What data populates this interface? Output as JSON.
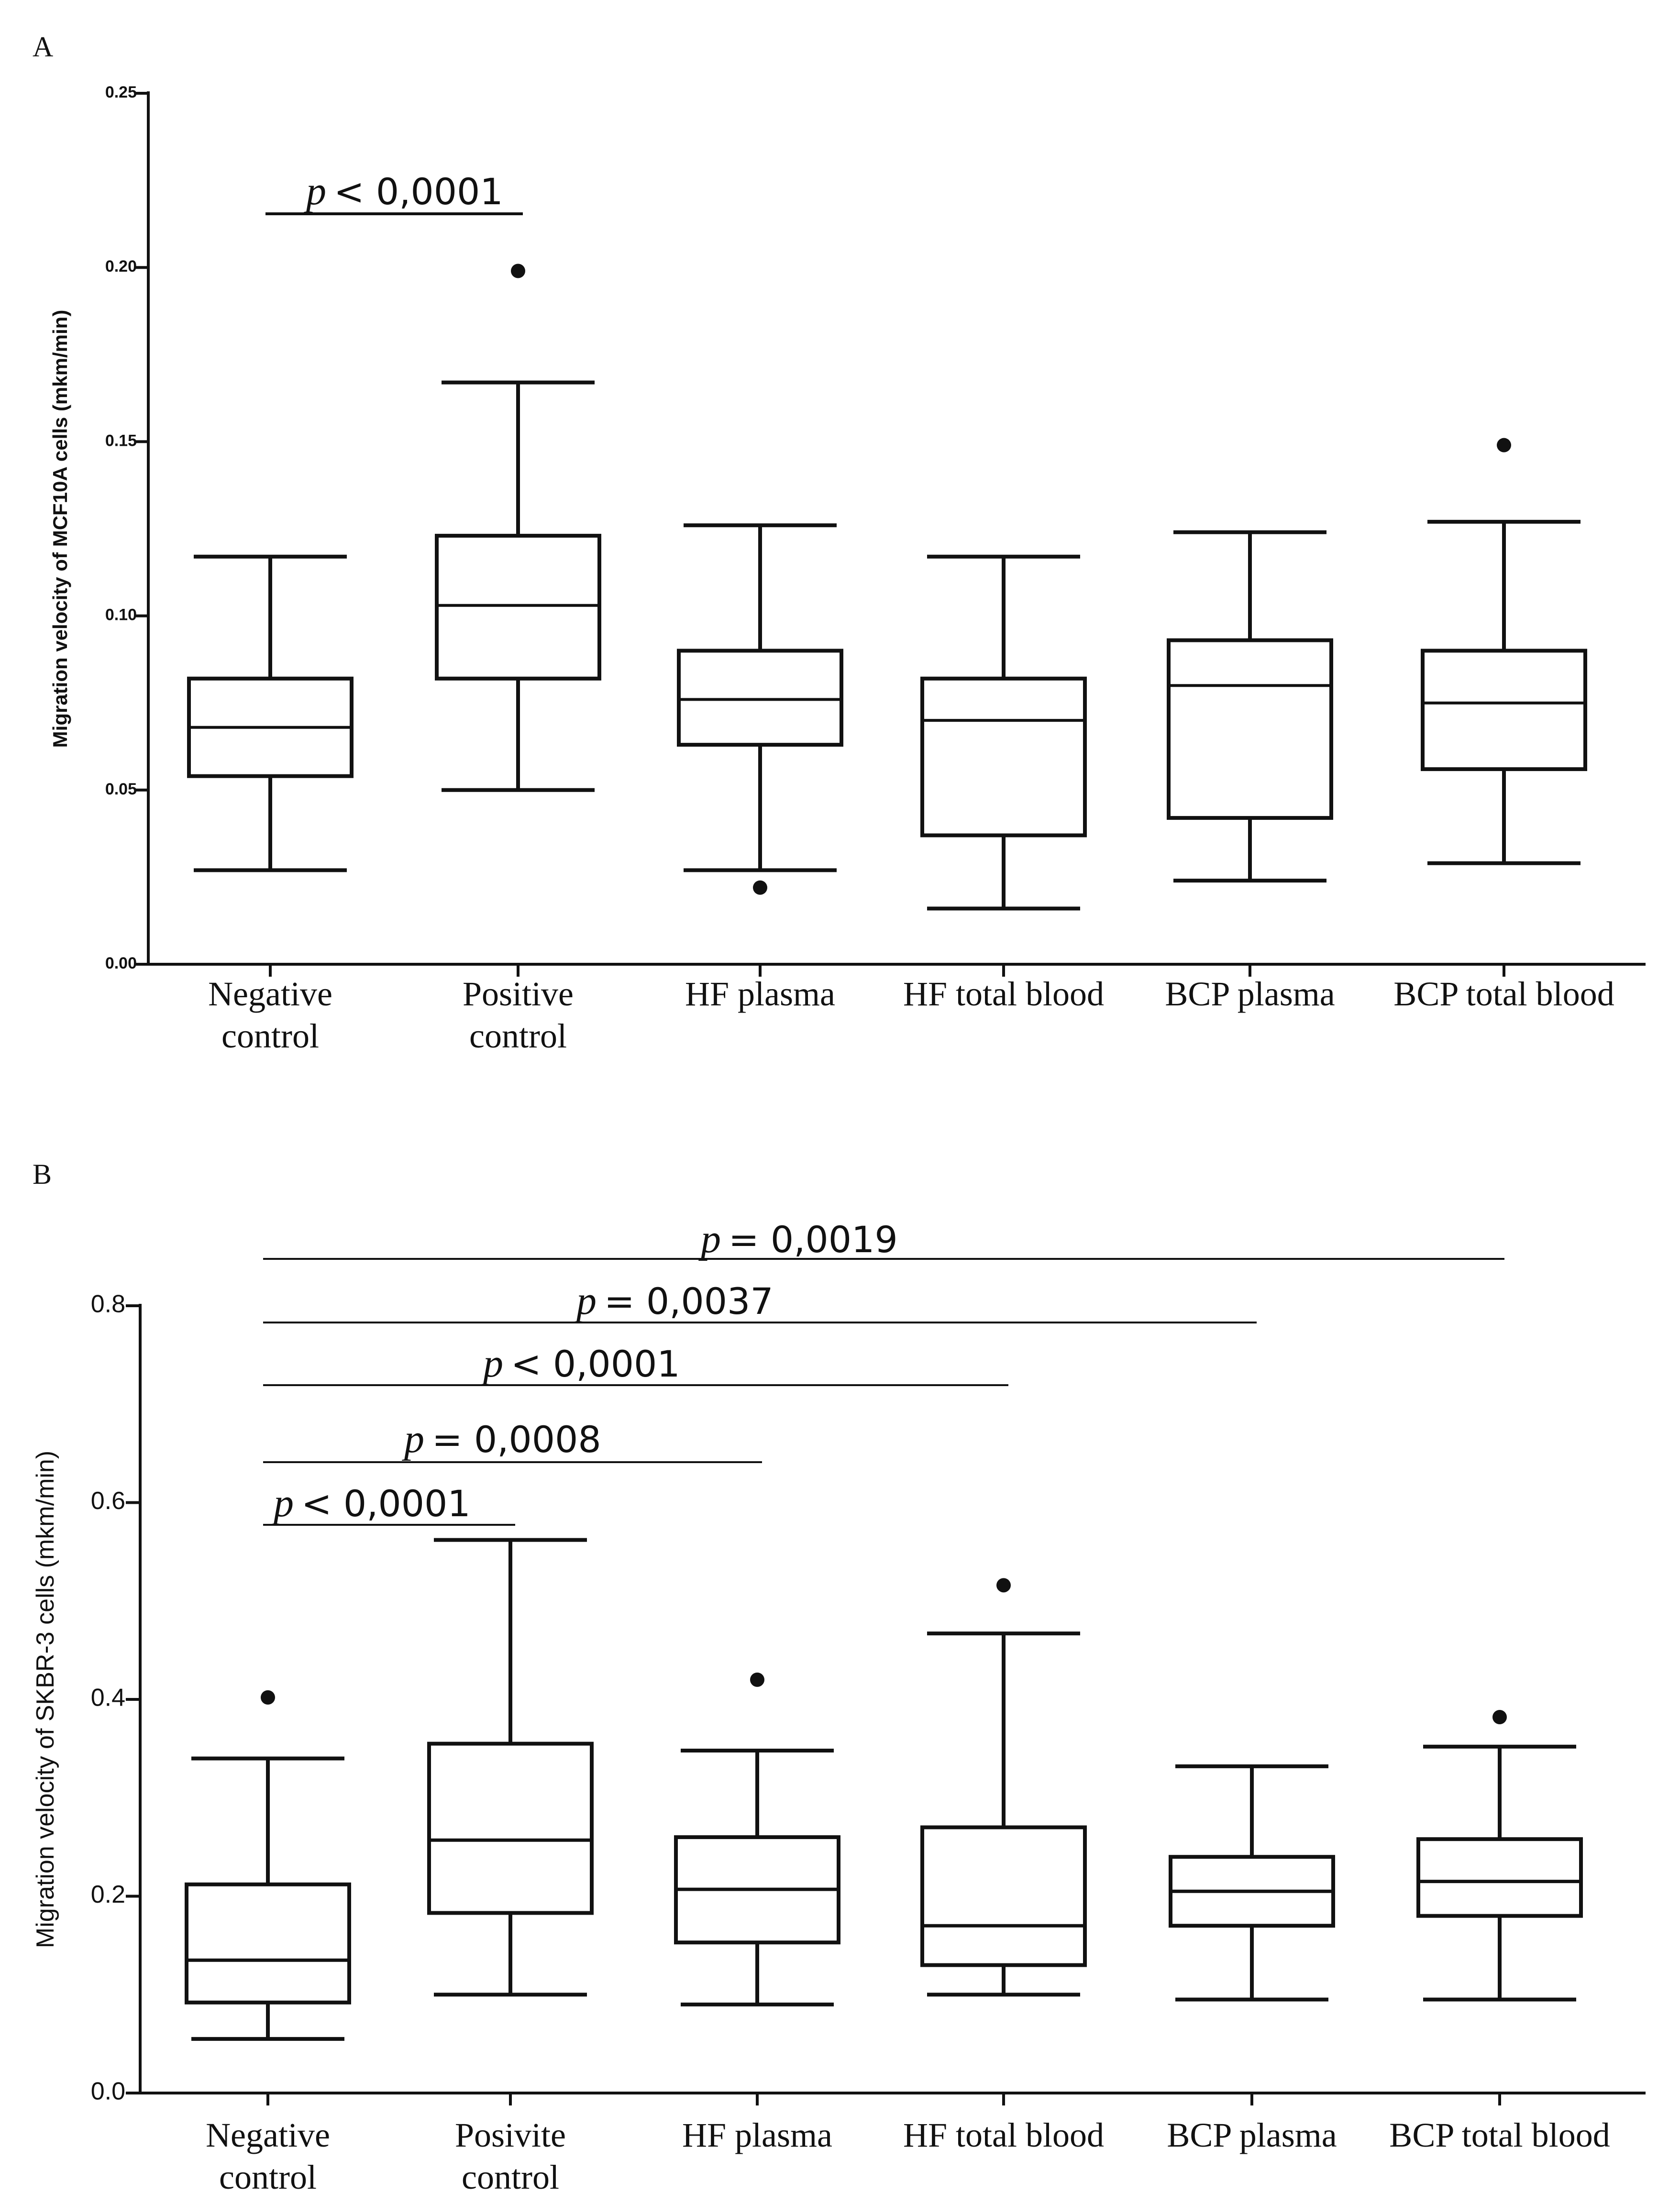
{
  "chart_data": [
    {
      "type": "box",
      "panel": "A",
      "ylabel": "Migration velocity of MCF10A cells (mkm/min)",
      "ylim": [
        0,
        0.25
      ],
      "yticks": [
        "0.00",
        "0.05",
        "0.10",
        "0.15",
        "0.20",
        "0.25"
      ],
      "ytick_values": [
        0,
        0.05,
        0.1,
        0.15,
        0.2,
        0.25
      ],
      "categories": [
        [
          "Negative",
          "control"
        ],
        [
          "Positive",
          "control"
        ],
        [
          "HF plasma"
        ],
        [
          "HF total blood"
        ],
        [
          "BCP plasma"
        ],
        [
          "BCP total blood"
        ]
      ],
      "boxes": [
        {
          "min": 0.027,
          "q1": 0.054,
          "median": 0.068,
          "q3": 0.082,
          "max": 0.117,
          "outliers": []
        },
        {
          "min": 0.05,
          "q1": 0.082,
          "median": 0.103,
          "q3": 0.123,
          "max": 0.167,
          "outliers": [
            0.199
          ]
        },
        {
          "min": 0.027,
          "q1": 0.063,
          "median": 0.076,
          "q3": 0.09,
          "max": 0.126,
          "outliers": [
            0.022
          ]
        },
        {
          "min": 0.016,
          "q1": 0.037,
          "median": 0.07,
          "q3": 0.082,
          "max": 0.117,
          "outliers": []
        },
        {
          "min": 0.024,
          "q1": 0.042,
          "median": 0.08,
          "q3": 0.093,
          "max": 0.124,
          "outliers": []
        },
        {
          "min": 0.029,
          "q1": 0.056,
          "median": 0.075,
          "q3": 0.09,
          "max": 0.127,
          "outliers": [
            0.149
          ]
        }
      ],
      "significance": [
        {
          "from": 0,
          "to": 1,
          "symbol": "p",
          "text": "< 0,0001"
        }
      ]
    },
    {
      "type": "box",
      "panel": "B",
      "ylabel": "Migration velocity of SKBR-3 cells (mkm/min)",
      "ylim": [
        0,
        0.8
      ],
      "yticks": [
        "0.0",
        "0.2",
        "0.4",
        "0.6",
        "0.8"
      ],
      "ytick_values": [
        0,
        0.2,
        0.4,
        0.6,
        0.8
      ],
      "categories": [
        [
          "Negative",
          "control"
        ],
        [
          "Posivite",
          "control"
        ],
        [
          "HF plasma"
        ],
        [
          "HF total blood"
        ],
        [
          "BCP plasma"
        ],
        [
          "BCP total blood"
        ]
      ],
      "boxes": [
        {
          "min": 0.055,
          "q1": 0.092,
          "median": 0.135,
          "q3": 0.212,
          "max": 0.34,
          "outliers": [
            0.402
          ]
        },
        {
          "min": 0.1,
          "q1": 0.183,
          "median": 0.257,
          "q3": 0.355,
          "max": 0.562,
          "outliers": []
        },
        {
          "min": 0.09,
          "q1": 0.153,
          "median": 0.207,
          "q3": 0.26,
          "max": 0.348,
          "outliers": [
            0.42
          ]
        },
        {
          "min": 0.1,
          "q1": 0.13,
          "median": 0.17,
          "q3": 0.27,
          "max": 0.467,
          "outliers": [
            0.516
          ]
        },
        {
          "min": 0.095,
          "q1": 0.17,
          "median": 0.205,
          "q3": 0.24,
          "max": 0.332,
          "outliers": []
        },
        {
          "min": 0.095,
          "q1": 0.18,
          "median": 0.215,
          "q3": 0.258,
          "max": 0.352,
          "outliers": [
            0.382
          ]
        }
      ],
      "significance": [
        {
          "from": 0,
          "to": 5,
          "symbol": "p",
          "text": "= 0,0019"
        },
        {
          "from": 0,
          "to": 4,
          "symbol": "p",
          "text": "= 0,0037"
        },
        {
          "from": 0,
          "to": 3,
          "symbol": "p",
          "text": "< 0,0001"
        },
        {
          "from": 0,
          "to": 2,
          "symbol": "p",
          "text": "= 0,0008"
        },
        {
          "from": 0,
          "to": 1,
          "symbol": "p",
          "text": "< 0,0001"
        }
      ]
    }
  ]
}
